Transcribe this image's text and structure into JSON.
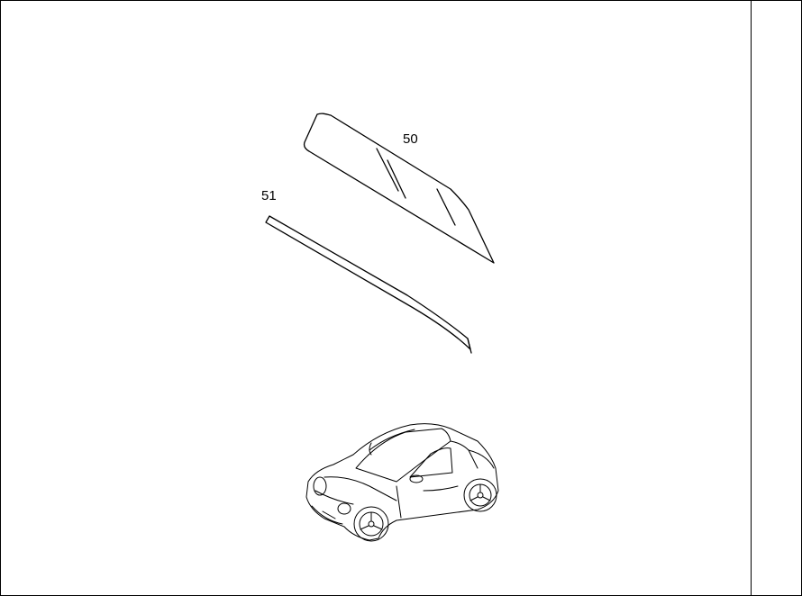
{
  "diagram": {
    "callouts": [
      {
        "id": "50",
        "label": "50",
        "part": "door-window-glass"
      },
      {
        "id": "51",
        "label": "51",
        "part": "window-seal-strip"
      }
    ],
    "vehicle": "roadster-coupe-overview",
    "colors": {
      "line": "#000000",
      "background": "#ffffff"
    }
  }
}
